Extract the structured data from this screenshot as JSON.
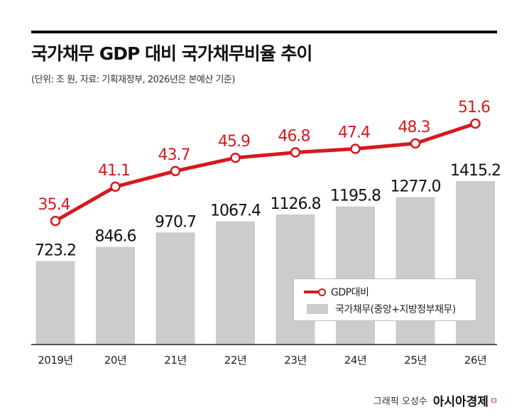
{
  "title": "국가채무 GDP 대비 국가채무비율 추이",
  "subtitle": "(단위: 조 원, 자료: 기획재정부, 2026년은 본예산 기준)",
  "colors": {
    "line": "#d7191e",
    "bar": "#cccccc",
    "text": "#111111"
  },
  "chart_data": {
    "type": "bar",
    "categories": [
      "2019년",
      "20년",
      "21년",
      "22년",
      "23년",
      "24년",
      "25년",
      "26년"
    ],
    "series": [
      {
        "name": "국가채무(중앙+지방정부채무)",
        "type": "bar",
        "unit": "조 원",
        "values": [
          723.2,
          846.6,
          970.7,
          1067.4,
          1126.8,
          1195.8,
          1277.0,
          1415.2
        ],
        "labels": [
          "723.2",
          "846.6",
          "970.7",
          "1067.4",
          "1126.8",
          "1195.8",
          "1277.0",
          "1415.2"
        ]
      },
      {
        "name": "GDP대비",
        "type": "line",
        "unit": "%",
        "values": [
          35.4,
          41.1,
          43.7,
          45.9,
          46.8,
          47.4,
          48.3,
          51.6
        ],
        "labels": [
          "35.4",
          "41.1",
          "43.7",
          "45.9",
          "46.8",
          "47.4",
          "48.3",
          "51.6"
        ]
      }
    ],
    "legend": [
      "GDP대비",
      "국가채무(중앙+지방정부채무)"
    ],
    "legend_position": "bottom-right",
    "grid": false
  },
  "credit": {
    "author": "그래픽 오성수",
    "brand": "아시아경제",
    "brand_mark": "ㅁ"
  }
}
